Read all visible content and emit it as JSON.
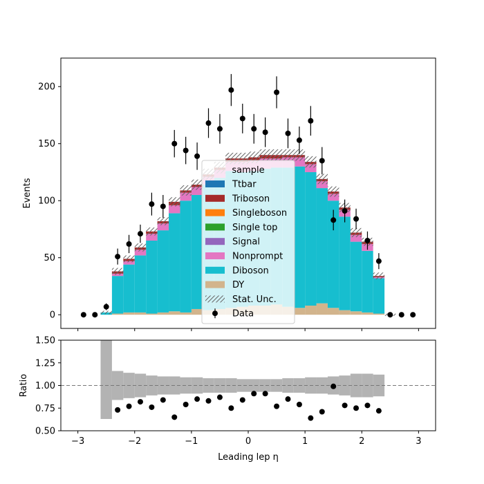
{
  "chart_data": [
    {
      "type": "bar",
      "subtype": "stacked-histogram",
      "ylabel": "Events",
      "xlim": [
        -3.3,
        3.3
      ],
      "ylim": [
        -12,
        225
      ],
      "yticks": [
        0,
        50,
        100,
        150,
        200
      ],
      "bin_edges": [
        -2.6,
        -2.4,
        -2.2,
        -2.0,
        -1.8,
        -1.6,
        -1.4,
        -1.2,
        -1.0,
        -0.8,
        -0.6,
        -0.4,
        -0.2,
        0.0,
        0.2,
        0.4,
        0.6,
        0.8,
        1.0,
        1.2,
        1.4,
        1.6,
        1.8,
        2.0,
        2.2,
        2.4,
        2.6
      ],
      "legend": {
        "title": "sample",
        "placement": "center"
      },
      "series": [
        {
          "name": "DY",
          "color": "#d2b48c",
          "values": [
            0,
            1,
            2,
            2,
            1,
            2,
            3,
            2,
            5,
            4,
            5,
            6,
            7,
            8,
            8,
            9,
            7,
            6,
            8,
            10,
            6,
            4,
            3,
            2,
            1,
            0
          ]
        },
        {
          "name": "Diboson",
          "color": "#17becf",
          "values": [
            2,
            33,
            42,
            50,
            64,
            72,
            86,
            98,
            100,
            110,
            115,
            120,
            118,
            118,
            120,
            120,
            122,
            124,
            117,
            101,
            94,
            82,
            61,
            54,
            31,
            0
          ]
        },
        {
          "name": "Nonprompt",
          "color": "#e377c2",
          "values": [
            0,
            2,
            3,
            5,
            6,
            6,
            7,
            7,
            7,
            7,
            7,
            8,
            9,
            9,
            9,
            8,
            9,
            8,
            7,
            6,
            6,
            6,
            6,
            6,
            1,
            0
          ]
        },
        {
          "name": "Signal",
          "color": "#9467bd",
          "values": [
            0,
            0,
            0,
            0,
            0,
            0,
            0,
            0,
            0,
            0,
            0,
            0,
            0,
            0,
            0,
            0,
            0,
            0,
            0,
            0,
            0,
            0,
            0,
            0,
            0,
            0
          ]
        },
        {
          "name": "Single top",
          "color": "#2ca02c",
          "values": [
            0,
            0,
            0,
            0,
            0,
            0,
            0,
            0,
            0,
            0,
            0,
            0,
            0,
            0,
            0,
            0,
            0,
            0,
            0,
            0,
            0,
            0,
            0,
            0,
            0,
            0
          ]
        },
        {
          "name": "Singleboson",
          "color": "#ff7f0e",
          "values": [
            0,
            0,
            0,
            0,
            0,
            0,
            0,
            0,
            0,
            0,
            0,
            0,
            0,
            0,
            0,
            0,
            0,
            0,
            0,
            0,
            0,
            0,
            0,
            0,
            0,
            0
          ]
        },
        {
          "name": "Triboson",
          "color": "#a52a2a",
          "values": [
            0,
            2,
            2,
            2,
            2,
            2,
            3,
            2,
            2,
            2,
            2,
            3,
            3,
            3,
            3,
            3,
            2,
            2,
            2,
            2,
            2,
            2,
            2,
            2,
            1,
            0
          ]
        },
        {
          "name": "Ttbar",
          "color": "#1f77b4",
          "values": [
            0,
            0,
            0,
            0,
            0,
            0,
            0,
            0,
            0,
            0,
            0,
            0,
            0,
            0,
            0,
            0,
            0,
            0,
            0,
            0,
            0,
            0,
            0,
            0,
            0,
            0
          ]
        }
      ],
      "stat_unc": {
        "name": "Stat. Unc.",
        "values": [
          1.5,
          3,
          3,
          3.5,
          3.5,
          3.5,
          4,
          4.5,
          4.5,
          5,
          5,
          5,
          5,
          5,
          5,
          5,
          5,
          5,
          5,
          4.5,
          4.5,
          4,
          4,
          3.5,
          3,
          1
        ]
      },
      "data": {
        "name": "Data",
        "x": [
          -2.9,
          -2.7,
          -2.5,
          -2.3,
          -2.1,
          -1.9,
          -1.7,
          -1.5,
          -1.3,
          -1.1,
          -0.9,
          -0.7,
          -0.5,
          -0.3,
          -0.1,
          0.1,
          0.3,
          0.5,
          0.7,
          0.9,
          1.1,
          1.3,
          1.5,
          1.7,
          1.9,
          2.1,
          2.3,
          2.5,
          2.7,
          2.9
        ],
        "y": [
          0,
          0,
          7,
          51,
          62,
          71,
          97,
          95,
          150,
          144,
          139,
          168,
          163,
          197,
          172,
          163,
          160,
          195,
          159,
          153,
          170,
          135,
          83,
          91,
          84,
          65,
          47,
          0,
          0,
          0
        ],
        "err": [
          0,
          0,
          3,
          7,
          8,
          8,
          10,
          10,
          12,
          12,
          12,
          13,
          13,
          14,
          13,
          13,
          13,
          14,
          13,
          12,
          13,
          12,
          9,
          10,
          9,
          8,
          7,
          0,
          0,
          0
        ]
      }
    },
    {
      "type": "scatter",
      "subtype": "ratio-panel",
      "xlabel": "Leading lep η",
      "ylabel": "Ratio",
      "xlim": [
        -3.3,
        3.3
      ],
      "ylim": [
        0.5,
        1.5
      ],
      "yticks": [
        "0.50",
        "0.75",
        "1.00",
        "1.25",
        "1.50"
      ],
      "xticks": [
        "−3",
        "−2",
        "−1",
        "0",
        "1",
        "2",
        "3"
      ],
      "xtick_values": [
        -3,
        -2,
        -1,
        0,
        1,
        2,
        3
      ],
      "reference_line": 1.0,
      "band_lower": [
        0.63,
        0.84,
        0.86,
        0.87,
        0.89,
        0.9,
        0.9,
        0.91,
        0.91,
        0.92,
        0.92,
        0.92,
        0.93,
        0.93,
        0.93,
        0.93,
        0.92,
        0.92,
        0.91,
        0.91,
        0.9,
        0.89,
        0.87,
        0.87,
        0.88,
        1.0
      ],
      "band_upper": [
        1.5,
        1.16,
        1.14,
        1.13,
        1.11,
        1.1,
        1.1,
        1.09,
        1.09,
        1.08,
        1.08,
        1.08,
        1.07,
        1.07,
        1.07,
        1.07,
        1.08,
        1.08,
        1.09,
        1.09,
        1.1,
        1.11,
        1.13,
        1.13,
        1.12,
        1.0
      ],
      "x": [
        -2.3,
        -2.1,
        -1.9,
        -1.7,
        -1.5,
        -1.3,
        -1.1,
        -0.9,
        -0.7,
        -0.5,
        -0.3,
        -0.1,
        0.1,
        0.3,
        0.5,
        0.7,
        0.9,
        1.1,
        1.3,
        1.5,
        1.7,
        1.9,
        2.1,
        2.3
      ],
      "y": [
        0.73,
        0.77,
        0.82,
        0.76,
        0.84,
        0.65,
        0.79,
        0.85,
        0.83,
        0.87,
        0.75,
        0.84,
        0.91,
        0.91,
        0.77,
        0.85,
        0.79,
        0.64,
        0.71,
        0.99,
        0.78,
        0.75,
        0.78,
        0.72
      ]
    }
  ]
}
